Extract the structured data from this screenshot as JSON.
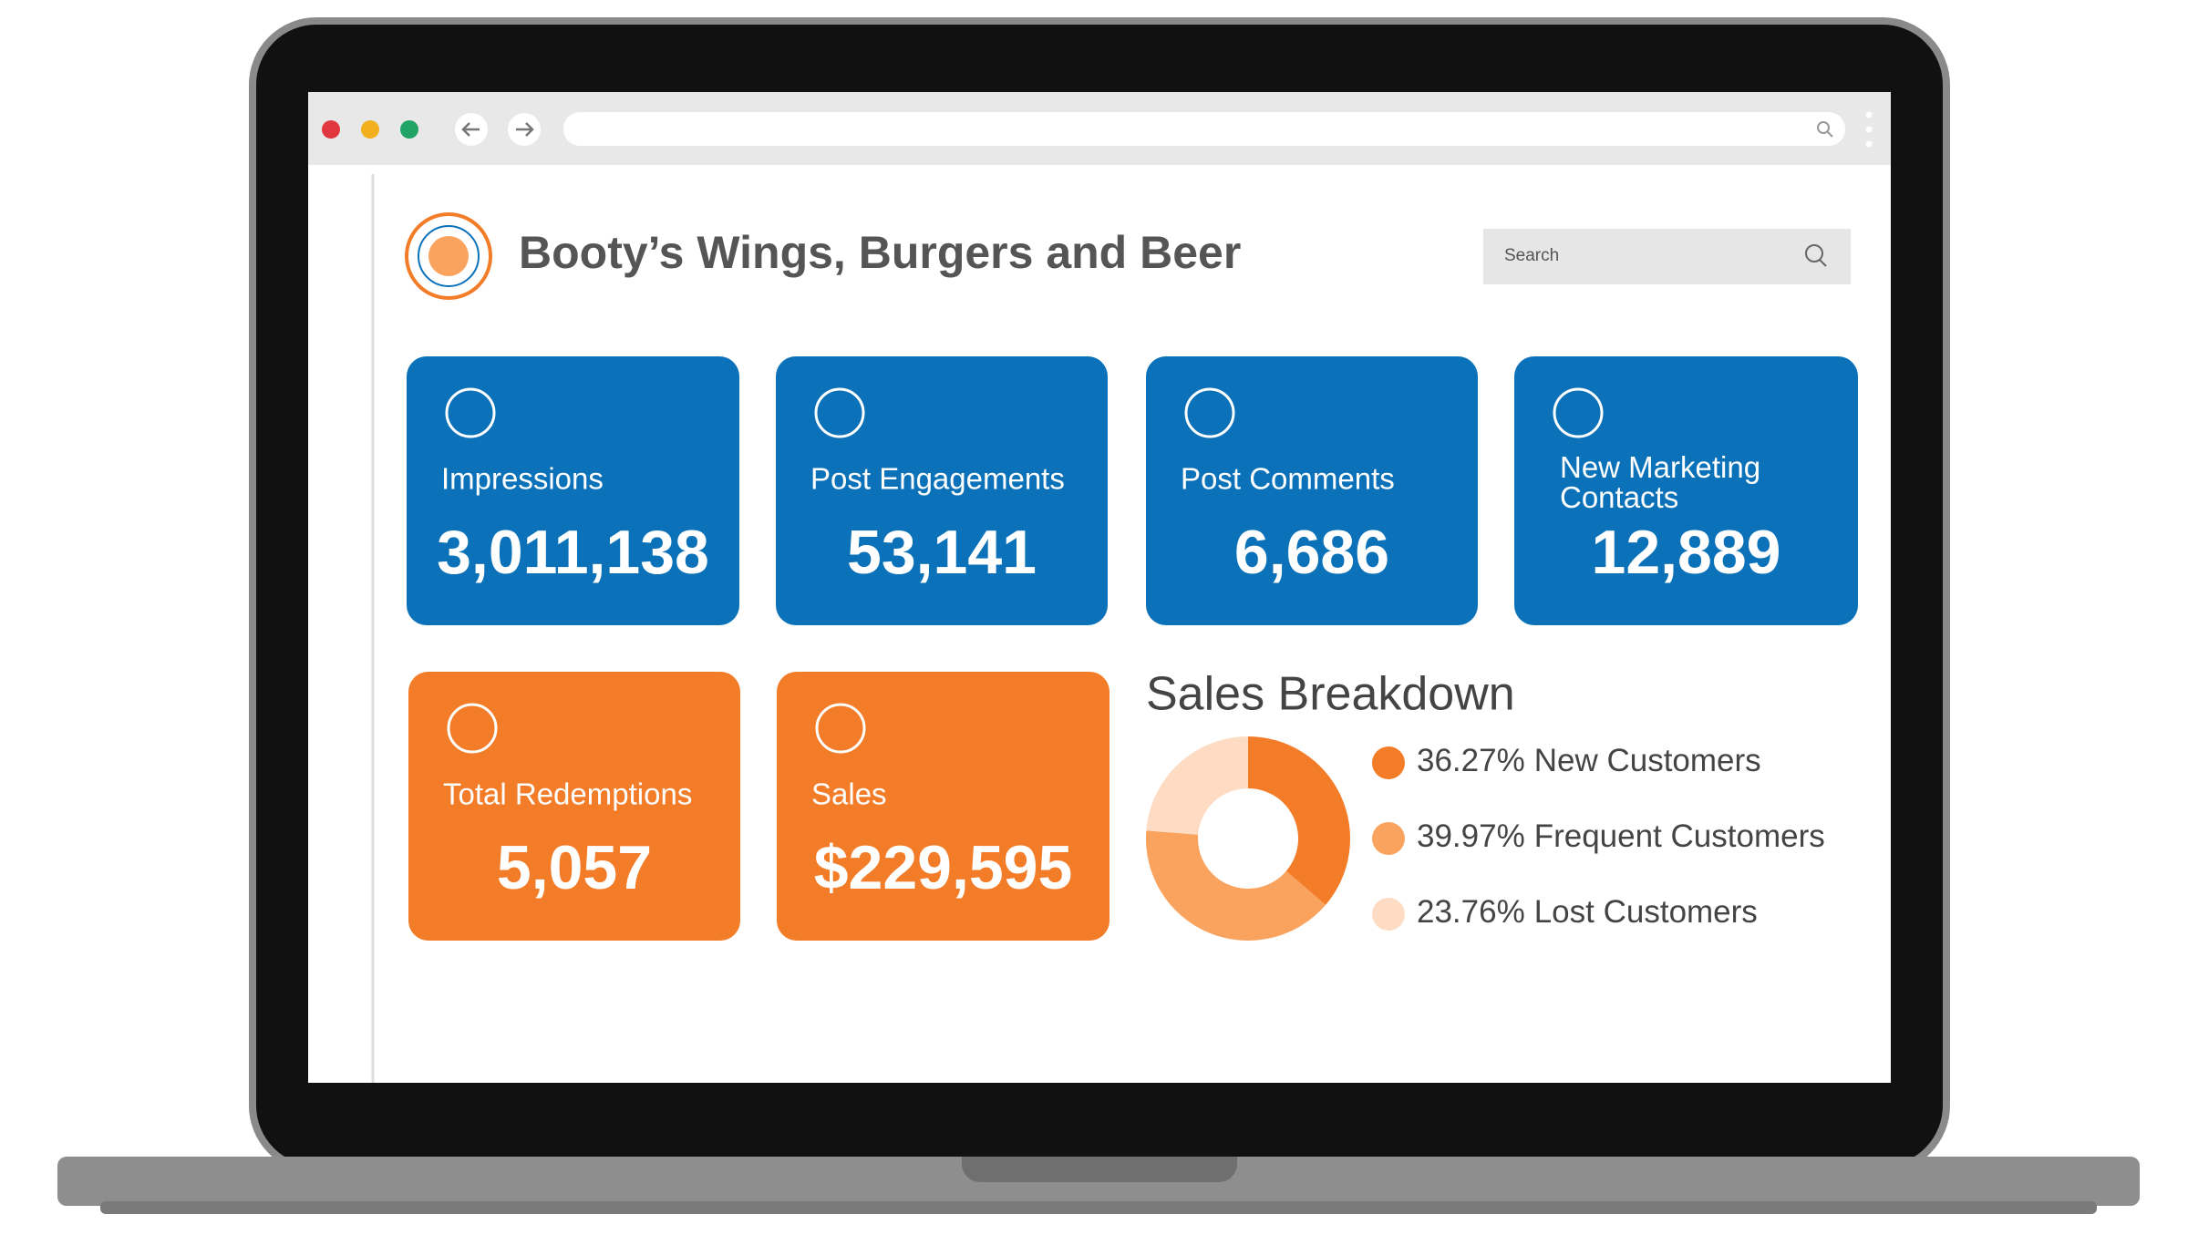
{
  "header": {
    "title": "Booty’s Wings, Burgers and Beer",
    "search_placeholder": "Search"
  },
  "kpis": [
    {
      "label": "Impressions",
      "value": "3,011,138"
    },
    {
      "label": "Post Engagements",
      "value": "53,141"
    },
    {
      "label": "Post Comments",
      "value": "6,686"
    },
    {
      "label": "New Marketing Contacts",
      "value": "12,889"
    },
    {
      "label": "Total Redemptions",
      "value": "5,057"
    },
    {
      "label": "Sales",
      "value": "$229,595"
    }
  ],
  "chart_data": {
    "type": "pie",
    "title": "Sales Breakdown",
    "categories": [
      "New Customers",
      "Frequent Customers",
      "Lost Customers"
    ],
    "values": [
      36.27,
      39.97,
      23.76
    ],
    "value_labels": [
      "36.27%",
      "39.97%",
      "23.76%"
    ],
    "colors": [
      "#f37c28",
      "#f9a35f",
      "#fddcc3"
    ],
    "donut": true
  }
}
